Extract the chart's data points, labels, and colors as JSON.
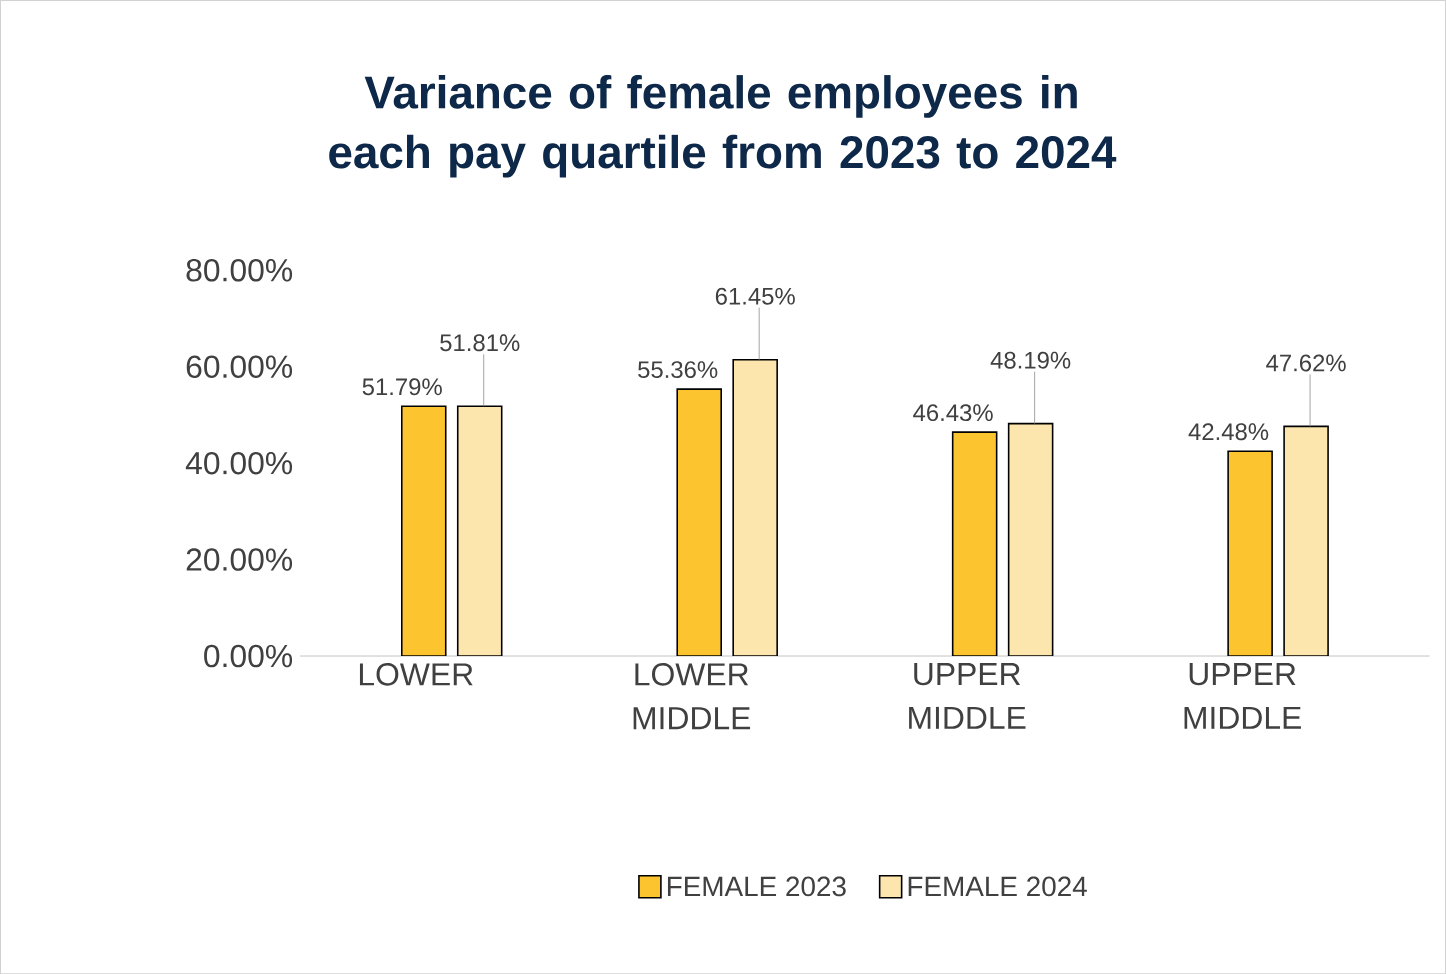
{
  "chart_data": {
    "type": "bar",
    "title": "Variance of female employees in each pay quartile from 2023 to 2024",
    "categories": [
      "LOWER",
      "LOWER MIDDLE",
      "UPPER MIDDLE",
      "UPPER MIDDLE"
    ],
    "series": [
      {
        "name": "FEMALE 2023",
        "color": "#fcc42e",
        "values": [
          51.79,
          55.36,
          46.43,
          42.48
        ],
        "value_labels": [
          "51.79%",
          "55.36%",
          "46.43%",
          "42.48%"
        ]
      },
      {
        "name": "FEMALE 2024",
        "color": "#fde5ae",
        "values": [
          51.81,
          61.45,
          48.19,
          47.62
        ],
        "value_labels": [
          "51.81%",
          "61.45%",
          "48.19%",
          "47.62%"
        ]
      }
    ],
    "ylim": [
      0,
      80
    ],
    "yticks": [
      {
        "value": 0,
        "label": "0.00%"
      },
      {
        "value": 20,
        "label": "20.00%"
      },
      {
        "value": 40,
        "label": "40.00%"
      },
      {
        "value": 60,
        "label": "60.00%"
      },
      {
        "value": 80,
        "label": "80.00%"
      }
    ],
    "legend": "bottom"
  }
}
